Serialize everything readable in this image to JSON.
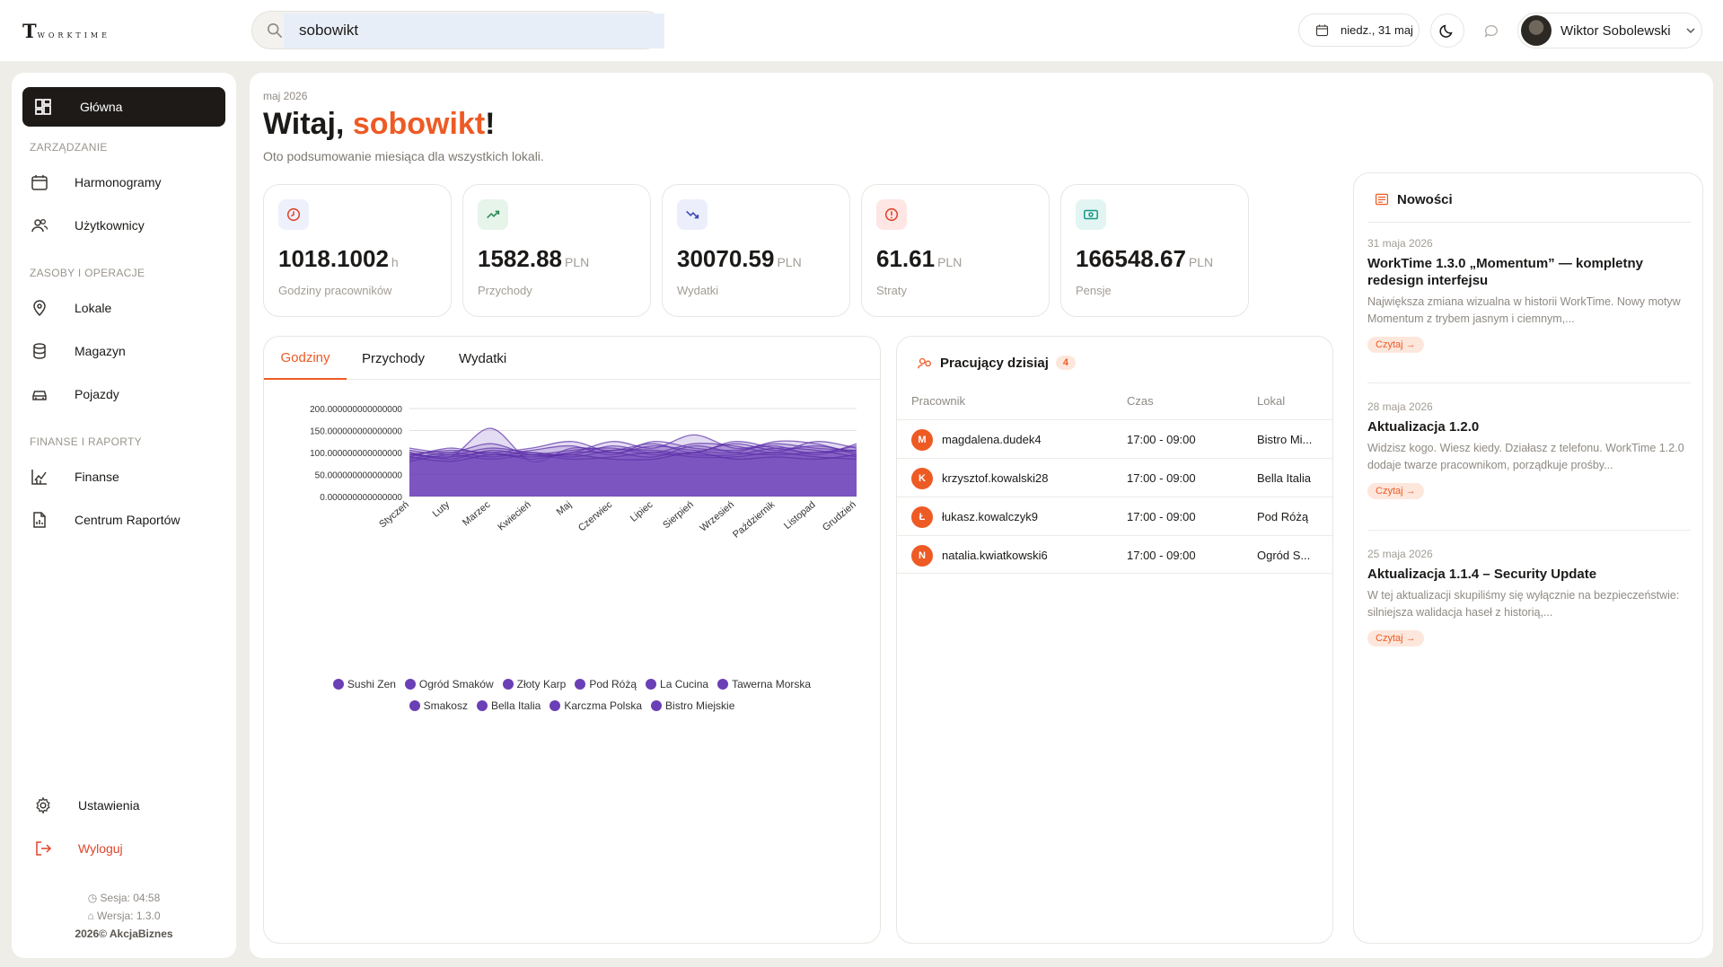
{
  "brand": {
    "letter": "T",
    "rest": "WORKTIME"
  },
  "search": {
    "value": "sobowikt"
  },
  "header": {
    "date": "niedz., 31 maj",
    "user_name": "Wiktor Sobolewski"
  },
  "sidebar": {
    "home": "Główna",
    "section_management": "ZARZĄDZANIE",
    "schedules": "Harmonogramy",
    "users": "Użytkownicy",
    "section_resources": "ZASOBY I OPERACJE",
    "locations": "Lokale",
    "warehouse": "Magazyn",
    "vehicles": "Pojazdy",
    "section_finance": "FINANSE I RAPORTY",
    "finance": "Finanse",
    "reports": "Centrum Raportów",
    "settings": "Ustawienia",
    "logout": "Wyloguj",
    "session": "Sesja: 04:58",
    "version": "Wersja: 1.3.0",
    "copyright": "2026© AkcjaBiznes"
  },
  "main": {
    "period": "maj 2026",
    "greeting_prefix": "Witaj, ",
    "greeting_name": "sobowikt",
    "greeting_suffix": "!",
    "subtitle": "Oto podsumowanie miesiąca dla wszystkich lokali."
  },
  "stats": [
    {
      "value": "1018.1002",
      "unit": "h",
      "label": "Godziny pracowników",
      "icon": "clock-icon",
      "color": "#e0442b",
      "bg": "#eef1fb"
    },
    {
      "value": "1582.88",
      "unit": "PLN",
      "label": "Przychody",
      "icon": "trend-up-icon",
      "color": "#2e8b57",
      "bg": "#e6f4ea"
    },
    {
      "value": "30070.59",
      "unit": "PLN",
      "label": "Wydatki",
      "icon": "trend-down-icon",
      "color": "#3b4bb5",
      "bg": "#eceffb"
    },
    {
      "value": "61.61",
      "unit": "PLN",
      "label": "Straty",
      "icon": "alert-icon",
      "color": "#e0442b",
      "bg": "#fde6e4"
    },
    {
      "value": "166548.67",
      "unit": "PLN",
      "label": "Pensje",
      "icon": "money-icon",
      "color": "#1a9a8a",
      "bg": "#e2f5f2"
    }
  ],
  "chart_tabs": {
    "hours": "Godziny",
    "income": "Przychody",
    "expenses": "Wydatki"
  },
  "chart_data": {
    "type": "area",
    "categories": [
      "Styczeń",
      "Luty",
      "Marzec",
      "Kwiecień",
      "Maj",
      "Czerwiec",
      "Lipiec",
      "Sierpień",
      "Wrzesień",
      "Październik",
      "Listopad",
      "Grudzień"
    ],
    "y_ticks": [
      "0.000000000000000",
      "50.000000000000000",
      "100.000000000000000",
      "150.000000000000000",
      "200.000000000000000"
    ],
    "ylim": [
      0,
      200
    ],
    "grid": true,
    "legend_position": "bottom",
    "series": [
      {
        "name": "Sushi Zen",
        "values": [
          100,
          90,
          155,
          80,
          110,
          105,
          120,
          100,
          125,
          110,
          100,
          115
        ]
      },
      {
        "name": "Ogród Smaków",
        "values": [
          110,
          100,
          120,
          95,
          100,
          125,
          110,
          140,
          110,
          120,
          110,
          105
        ]
      },
      {
        "name": "Złoty Karp",
        "values": [
          95,
          105,
          100,
          110,
          125,
          100,
          115,
          105,
          100,
          125,
          120,
          95
        ]
      },
      {
        "name": "Pod Różą",
        "values": [
          105,
          95,
          110,
          100,
          95,
          115,
          100,
          120,
          115,
          100,
          125,
          110
        ]
      },
      {
        "name": "La Cucina",
        "values": [
          90,
          110,
          95,
          105,
          115,
          95,
          125,
          110,
          105,
          115,
          95,
          120
        ]
      },
      {
        "name": "Tawerna Morska",
        "values": [
          100,
          85,
          105,
          95,
          105,
          110,
          95,
          100,
          120,
          105,
          115,
          100
        ]
      },
      {
        "name": "Smakosz",
        "values": [
          85,
          100,
          90,
          100,
          90,
          105,
          105,
          95,
          95,
          110,
          105,
          90
        ]
      },
      {
        "name": "Bella Italia",
        "values": [
          95,
          90,
          100,
          85,
          100,
          100,
          90,
          115,
          100,
          95,
          100,
          105
        ]
      },
      {
        "name": "Karczma Polska",
        "values": [
          80,
          95,
          85,
          95,
          85,
          90,
          100,
          90,
          90,
          100,
          90,
          85
        ]
      },
      {
        "name": "Bistro Miejskie",
        "values": [
          90,
          80,
          95,
          90,
          95,
          85,
          85,
          100,
          85,
          90,
          85,
          95
        ]
      }
    ],
    "color": "#6b3fb5"
  },
  "workers": {
    "title": "Pracujący dzisiaj",
    "count": "4",
    "col_employee": "Pracownik",
    "col_time": "Czas",
    "col_location": "Lokal",
    "rows": [
      {
        "initial": "M",
        "name": "magdalena.dudek4",
        "time": "17:00 - 09:00",
        "location": "Bistro Mi..."
      },
      {
        "initial": "K",
        "name": "krzysztof.kowalski28",
        "time": "17:00 - 09:00",
        "location": "Bella Italia"
      },
      {
        "initial": "Ł",
        "name": "łukasz.kowalczyk9",
        "time": "17:00 - 09:00",
        "location": "Pod Różą"
      },
      {
        "initial": "N",
        "name": "natalia.kwiatkowski6",
        "time": "17:00 - 09:00",
        "location": "Ogród S..."
      }
    ]
  },
  "news": {
    "title": "Nowości",
    "read_label": "Czytaj",
    "items": [
      {
        "date": "31 maja 2026",
        "title": "WorkTime 1.3.0 „Momentum” — kompletny redesign interfejsu",
        "desc": "Największa zmiana wizualna w historii WorkTime. Nowy motyw Momentum z trybem jasnym i ciemnym,..."
      },
      {
        "date": "28 maja 2026",
        "title": "Aktualizacja 1.2.0",
        "desc": "Widzisz kogo. Wiesz kiedy. Działasz z telefonu. WorkTime 1.2.0 dodaje twarze pracownikom, porządkuje prośby..."
      },
      {
        "date": "25 maja 2026",
        "title": "Aktualizacja 1.1.4 – Security Update",
        "desc": "W tej aktualizacji skupiliśmy się wyłącznie na bezpieczeństwie: silniejsza walidacja haseł z historią,..."
      }
    ]
  }
}
